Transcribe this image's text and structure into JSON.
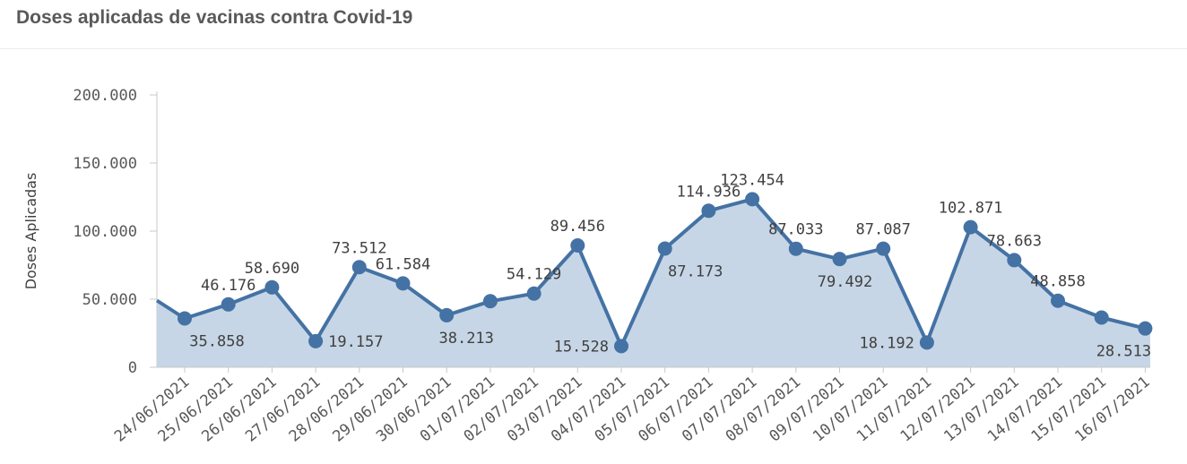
{
  "title": "Doses aplicadas de vacinas contra Covid-19",
  "colors": {
    "line": "#4472a4",
    "area": "#c7d6e6",
    "marker": "#4472a4"
  },
  "chart_data": {
    "type": "area",
    "title": "Doses aplicadas de vacinas contra Covid-19",
    "ylabel": "Doses Aplicadas",
    "xlabel": "",
    "ylim": [
      0,
      200000
    ],
    "yticks": [
      "0",
      "50.000",
      "100.000",
      "150.000",
      "200.000"
    ],
    "categories": [
      "24/06/2021",
      "25/06/2021",
      "26/06/2021",
      "27/06/2021",
      "28/06/2021",
      "29/06/2021",
      "30/06/2021",
      "01/07/2021",
      "02/07/2021",
      "03/07/2021",
      "04/07/2021",
      "05/07/2021",
      "06/07/2021",
      "07/07/2021",
      "08/07/2021",
      "09/07/2021",
      "10/07/2021",
      "11/07/2021",
      "12/07/2021",
      "13/07/2021",
      "14/07/2021",
      "15/07/2021",
      "16/07/2021"
    ],
    "values": [
      35858,
      46176,
      58690,
      19157,
      73512,
      61584,
      38213,
      48500,
      54129,
      89456,
      15528,
      87173,
      114936,
      123454,
      87033,
      79492,
      87087,
      18192,
      102871,
      78663,
      48858,
      36500,
      28513
    ],
    "data_labels": [
      "35.858",
      "46.176",
      "58.690",
      "19.157",
      "73.512",
      "61.584",
      "38.213",
      "",
      "54.129",
      "89.456",
      "15.528",
      "87.173",
      "114.936",
      "123.454",
      "87.033",
      "79.492",
      "87.087",
      "18.192",
      "102.871",
      "78.663",
      "48.858",
      "",
      "28.513"
    ],
    "left_edge_value": 49000,
    "grid": false,
    "legend": "none"
  }
}
